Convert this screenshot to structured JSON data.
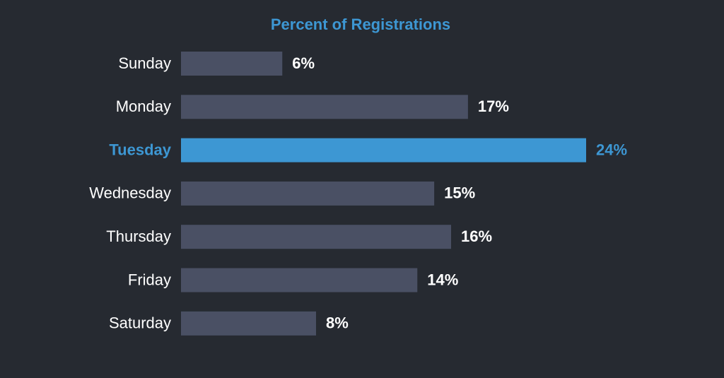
{
  "chart_data": {
    "type": "bar",
    "orientation": "horizontal",
    "title": "Percent of Registrations",
    "categories": [
      "Sunday",
      "Monday",
      "Tuesday",
      "Wednesday",
      "Thursday",
      "Friday",
      "Saturday"
    ],
    "values": [
      6,
      17,
      24,
      15,
      16,
      14,
      8
    ],
    "value_labels": [
      "6%",
      "17%",
      "24%",
      "15%",
      "16%",
      "14%",
      "8%"
    ],
    "colors": [
      "#4a5064",
      "#4a5064",
      "#3d97d3",
      "#4a5064",
      "#4a5064",
      "#4a5064",
      "#4a5064"
    ],
    "label_colors": [
      "#ffffff",
      "#ffffff",
      "#3d97d3",
      "#ffffff",
      "#ffffff",
      "#ffffff",
      "#ffffff"
    ],
    "title_color": "#3d97d3"
  }
}
